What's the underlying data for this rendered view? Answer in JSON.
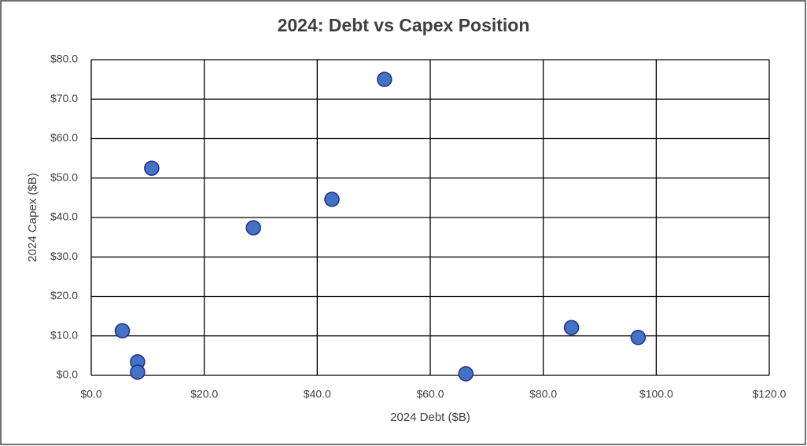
{
  "chart_data": {
    "type": "scatter",
    "title": "2024: Debt vs Capex Position",
    "x_label": "2024 Debt ($B)",
    "y_label": "2024 Capex ($B)",
    "series": [
      {
        "color": "#4472c4",
        "x": [
          5.5,
          8.2,
          8.2,
          10.7,
          28.7,
          42.6,
          51.9,
          66.3,
          85.0,
          96.8
        ],
        "values": [
          11.3,
          3.4,
          0.8,
          52.5,
          37.4,
          44.6,
          75.0,
          0.4,
          12.1,
          9.6
        ]
      }
    ],
    "xlim": [
      0,
      120
    ],
    "xticks": [
      {
        "value": 0,
        "label": "$0.0"
      },
      {
        "value": 20,
        "label": "$20.0"
      },
      {
        "value": 40,
        "label": "$40.0"
      },
      {
        "value": 60,
        "label": "$60.0"
      },
      {
        "value": 80,
        "label": "$80.0"
      },
      {
        "value": 100,
        "label": "$100.0"
      },
      {
        "value": 120,
        "label": "$120.0"
      }
    ],
    "ylim": [
      0,
      80
    ],
    "yticks": [
      {
        "value": 0,
        "label": "$0.0"
      },
      {
        "value": 10,
        "label": "$10.0"
      },
      {
        "value": 20,
        "label": "$20.0"
      },
      {
        "value": 30,
        "label": "$30.0"
      },
      {
        "value": 40,
        "label": "$40.0"
      },
      {
        "value": 50,
        "label": "$50.0"
      },
      {
        "value": 60,
        "label": "$60.0"
      },
      {
        "value": 70,
        "label": "$70.0"
      },
      {
        "value": 80,
        "label": "$80.0"
      }
    ],
    "grid": true
  }
}
